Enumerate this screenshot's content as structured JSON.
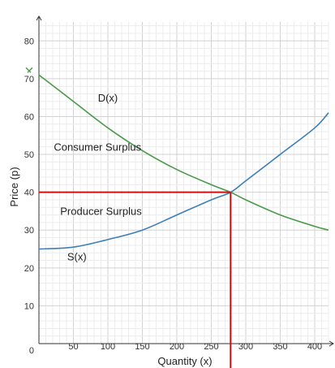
{
  "chart_data": {
    "type": "line",
    "xlabel": "Quantity (x)",
    "ylabel": "Price (p)",
    "xlim": [
      0,
      420
    ],
    "ylim": [
      0,
      85
    ],
    "x_ticks": [
      50,
      100,
      150,
      200,
      250,
      300,
      350,
      400
    ],
    "y_ticks": [
      0,
      10,
      20,
      30,
      40,
      50,
      60,
      70,
      80
    ],
    "grid": true,
    "series": [
      {
        "name": "D(x)",
        "color": "#4a9a4a",
        "x": [
          0,
          50,
          100,
          150,
          200,
          250,
          278,
          300,
          350,
          400,
          420
        ],
        "y": [
          71,
          64,
          57,
          51,
          46,
          42,
          40,
          38,
          34,
          31,
          30
        ]
      },
      {
        "name": "S(x)",
        "color": "#3c7fb8",
        "x": [
          0,
          50,
          100,
          150,
          200,
          250,
          278,
          300,
          350,
          400,
          420
        ],
        "y": [
          25,
          25.5,
          27.5,
          30,
          34,
          38,
          40,
          43,
          50,
          57,
          61
        ]
      }
    ],
    "equilibrium": {
      "x": 278,
      "y": 40,
      "color": "#cc1111"
    },
    "annotations": [
      {
        "text": "D(x)",
        "x": 100,
        "y": 64
      },
      {
        "text": "Consumer Surplus",
        "x": 85,
        "y": 51
      },
      {
        "text": "Producer Surplus",
        "x": 90,
        "y": 34
      },
      {
        "text": "S(x)",
        "x": 55,
        "y": 22
      }
    ]
  }
}
